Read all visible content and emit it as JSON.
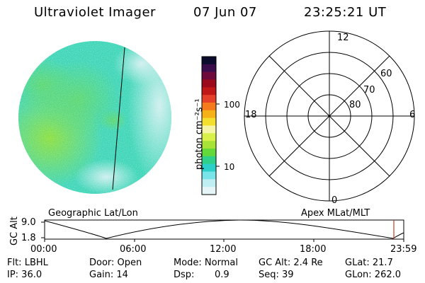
{
  "header": {
    "title": "Ultraviolet Imager",
    "date": "07 Jun 07",
    "time": "23:25:21 UT"
  },
  "colorbar": {
    "label": "photon cm⁻²s⁻¹",
    "ticks": [
      "100",
      "10"
    ],
    "colors": [
      "#0b0b2e",
      "#3a0c4c",
      "#6e0a3b",
      "#9a0a1a",
      "#c01717",
      "#e5402a",
      "#f57a1c",
      "#f6b118",
      "#f4df2f",
      "#f6f5a6",
      "#d9f04a",
      "#a8e33a",
      "#62d83a",
      "#2fd08a",
      "#2cd0c9",
      "#78e3e8",
      "#bfeff2",
      "#e6f6f8"
    ]
  },
  "polar": {
    "labels": {
      "top": "12",
      "bottom": "0",
      "left": "18",
      "right": "6"
    },
    "lat_labels": [
      "60",
      "70",
      "80"
    ]
  },
  "timeline": {
    "left_caption": "Geographic Lat/Lon",
    "right_caption": "Apex MLat/MLT",
    "y_axis_label": "GC Alt",
    "y_ticks": [
      "9.0",
      "1.8"
    ],
    "x_ticks": [
      "00:00",
      "06:00",
      "12:00",
      "18:00",
      "23:59"
    ]
  },
  "footer": {
    "flt": "Flt: LBHL",
    "ip": "IP: 36.0",
    "door": "Door: Open",
    "gain": "Gain: 14",
    "mode": "Mode: Normal",
    "dsp_label": "Dsp:",
    "dsp_value": "0.9",
    "gc_alt": "GC Alt: 2.4 Re",
    "seq": "Seq: 39",
    "glat": "GLat: 21.7",
    "glon": "GLon: 262.0"
  }
}
